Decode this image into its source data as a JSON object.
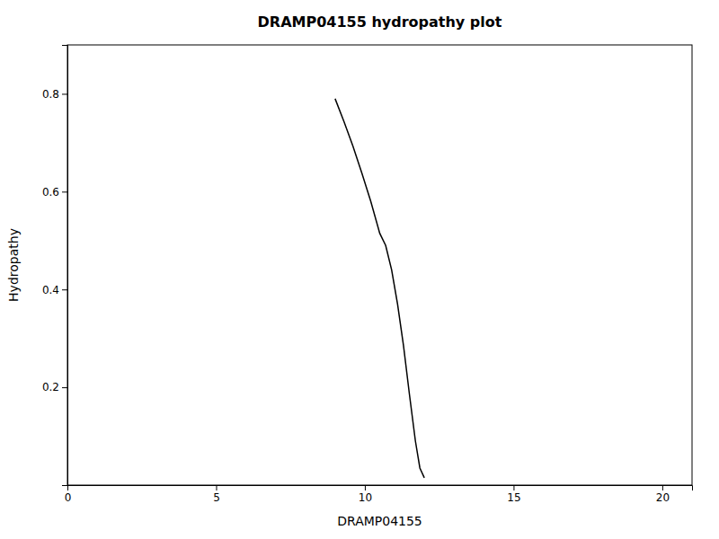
{
  "chart_data": {
    "type": "line",
    "title": "DRAMP04155 hydropathy plot",
    "xlabel": "DRAMP04155",
    "ylabel": "Hydropathy",
    "x": [
      9.0,
      9.3,
      9.6,
      9.9,
      10.2,
      10.5,
      10.7,
      10.9,
      11.1,
      11.3,
      11.5,
      11.7,
      11.85,
      12.0
    ],
    "values": [
      0.79,
      0.743,
      0.693,
      0.638,
      0.58,
      0.515,
      0.49,
      0.44,
      0.37,
      0.285,
      0.185,
      0.09,
      0.035,
      0.015
    ],
    "color": "#000000",
    "xlim": [
      0,
      21
    ],
    "ylim": [
      0,
      0.9
    ],
    "xticks": [
      0,
      5,
      10,
      15,
      20
    ],
    "yticks": [
      0.2,
      0.4,
      0.6,
      0.8
    ]
  }
}
